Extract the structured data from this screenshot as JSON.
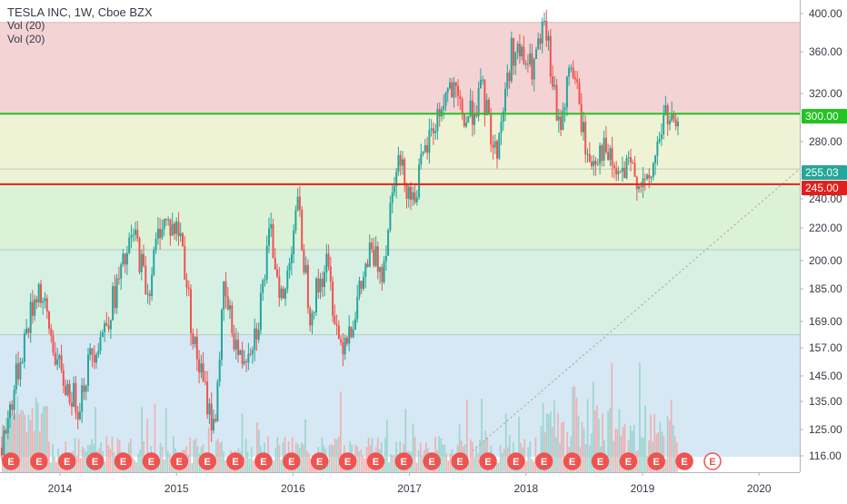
{
  "header": {
    "title": "TESLA INC, 1W, Cboe BZX",
    "indicators": [
      "Vol (20)",
      "Vol (20)"
    ]
  },
  "chart_data": {
    "type": "candlestick",
    "symbol": "TESLA INC",
    "interval": "1W",
    "exchange": "Cboe BZX",
    "y_axis_ticks": [
      "400.00",
      "360.00",
      "320.00",
      "280.00",
      "240.00",
      "220.00",
      "200.00",
      "185.00",
      "169.00",
      "157.00",
      "145.00",
      "135.00",
      "125.00",
      "116.00"
    ],
    "ylim": [
      112,
      400
    ],
    "log_scale": true,
    "x_axis_ticks": [
      "2014",
      "2015",
      "2016",
      "2017",
      "2018",
      "2019",
      "2020"
    ],
    "xlim": [
      "2013-06",
      "2020-09"
    ],
    "price_labels": [
      {
        "value": "300.00",
        "color": "#22c322"
      },
      {
        "value": "255.03",
        "color": "#26a69a"
      },
      {
        "value": "245.00",
        "color": "#e0201c"
      }
    ],
    "horizontal_lines": [
      {
        "value": 300,
        "color": "#22c322"
      },
      {
        "value": 245,
        "color": "#e0201c"
      }
    ],
    "zones": [
      {
        "from": 300,
        "to": 390,
        "color": "#f4d3d5"
      },
      {
        "from": 245,
        "to": 300,
        "color": "#eef3d6"
      },
      {
        "from": 203,
        "to": 245,
        "color": "#dcf2d7"
      },
      {
        "from": 159,
        "to": 203,
        "color": "#d7f0e4"
      },
      {
        "from": 112,
        "to": 159,
        "color": "#d6e8f4"
      }
    ],
    "extra_levels": [
      256,
      203,
      159
    ],
    "price_path": [
      [
        0,
        0.62
      ],
      [
        0.35,
        0.88
      ],
      [
        0.55,
        1.0
      ],
      [
        0.9,
        0.78
      ],
      [
        1.15,
        0.72
      ],
      [
        1.35,
        0.84
      ],
      [
        1.55,
        0.9
      ],
      [
        1.75,
        1.0
      ],
      [
        2.0,
        1.12
      ],
      [
        2.2,
        0.98
      ],
      [
        2.4,
        1.15
      ],
      [
        2.7,
        1.12
      ],
      [
        2.9,
        0.86
      ],
      [
        3.2,
        0.66
      ],
      [
        3.35,
        0.98
      ],
      [
        3.6,
        0.82
      ],
      [
        3.85,
        0.9
      ],
      [
        4.05,
        1.12
      ],
      [
        4.25,
        0.95
      ],
      [
        4.45,
        1.2
      ],
      [
        4.65,
        0.94
      ],
      [
        4.9,
        1.05
      ],
      [
        5.1,
        0.86
      ],
      [
        5.3,
        0.92
      ],
      [
        5.55,
        1.07
      ],
      [
        5.75,
        1.04
      ],
      [
        5.95,
        1.3
      ],
      [
        6.2,
        1.2
      ],
      [
        6.45,
        1.34
      ],
      [
        6.75,
        1.46
      ],
      [
        7.0,
        1.38
      ],
      [
        7.25,
        1.45
      ],
      [
        7.45,
        1.3
      ],
      [
        7.7,
        1.55
      ],
      [
        8.0,
        1.5
      ],
      [
        8.2,
        1.6
      ],
      [
        8.4,
        1.36
      ],
      [
        8.6,
        1.52
      ],
      [
        8.85,
        1.28
      ],
      [
        9.05,
        1.32
      ],
      [
        9.3,
        1.25
      ],
      [
        9.5,
        1.27
      ],
      [
        9.75,
        1.22
      ],
      [
        10.0,
        1.4
      ],
      [
        10.2,
        1.35
      ]
    ],
    "earnings_markers": 26,
    "earnings_marker_label": "E",
    "colors": {
      "up": "#26a69a",
      "down": "#ef5350",
      "trend_line": "#9aa0a6"
    }
  }
}
